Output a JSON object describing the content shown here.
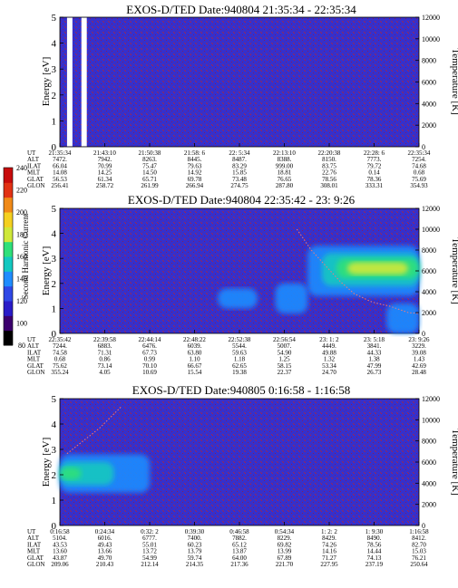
{
  "chart_data": {
    "type": "heatmap",
    "colorbar": {
      "label": "Second Harmonic Current",
      "ticks": [
        "80",
        "100",
        "120",
        "140",
        "160",
        "180",
        "200",
        "220",
        "240"
      ],
      "colors": [
        "#000000",
        "#3c006e",
        "#2a1cc8",
        "#2f48e6",
        "#1f8cff",
        "#13c8c0",
        "#2fe07a",
        "#cfe83a",
        "#f4d020",
        "#f08a18",
        "#e23214",
        "#c80c0c"
      ]
    },
    "panels": [
      {
        "title": "EXOS-D/TED   Date:940804  21:35:34 - 22:35:34",
        "ylabel": "Energy [eV]",
        "y2label": "Temperature [K]",
        "ylim": [
          0,
          5
        ],
        "y2lim": [
          0,
          12000
        ],
        "yticks": [
          "0",
          "1",
          "2",
          "3",
          "4",
          "5"
        ],
        "y2ticks": [
          "0",
          "2000",
          "4000",
          "6000",
          "8000",
          "10000",
          "12000"
        ],
        "gap_segments": [
          [
            0.02,
            0.035
          ],
          [
            0.06,
            0.075
          ]
        ],
        "spectrogram": [],
        "temperature_trace": [],
        "ephemeris": {
          "row_labels": [
            "UT",
            "ALT",
            "ILAT",
            "MLT",
            "GLAT",
            "GLON"
          ],
          "columns": [
            [
              "21:35:34",
              "7472.",
              "66.04",
              "14.08",
              "56.53",
              "256.41"
            ],
            [
              "21:43:10",
              "7942.",
              "70.99",
              "14.25",
              "61.34",
              "258.72"
            ],
            [
              "21:50:38",
              "8263.",
              "75.47",
              "14.50",
              "65.71",
              "261.99"
            ],
            [
              "21:58: 6",
              "8445.",
              "79.63",
              "14.92",
              "69.78",
              "266.94"
            ],
            [
              "22: 5:34",
              "8487.",
              "83.29",
              "15.85",
              "73.48",
              "274.75"
            ],
            [
              "22:13:10",
              "8388.",
              "999.00",
              "18.81",
              "76.65",
              "287.80"
            ],
            [
              "22:20:38",
              "8150.",
              "83.75",
              "22.76",
              "78.56",
              "308.01"
            ],
            [
              "22:28: 6",
              "7773.",
              "79.72",
              "0.14",
              "78.36",
              "333.31"
            ],
            [
              "22:35:34",
              "7254.",
              "74.68",
              "0.68",
              "75.69",
              "354.93"
            ]
          ]
        }
      },
      {
        "title": "EXOS-D/TED   Date:940804  22:35:42 - 23: 9:26",
        "ylabel": "Energy [eV]",
        "y2label": "Temperature [K]",
        "ylim": [
          0,
          5
        ],
        "y2lim": [
          0,
          12000
        ],
        "yticks": [
          "0",
          "1",
          "2",
          "3",
          "4",
          "5"
        ],
        "y2ticks": [
          "0",
          "2000",
          "4000",
          "6000",
          "8000",
          "10000",
          "12000"
        ],
        "gap_segments": [],
        "spectrogram": [
          {
            "x": [
              0.69,
              1.0
            ],
            "y": [
              1.5,
              3.5
            ],
            "level": 3
          },
          {
            "x": [
              0.73,
              1.0
            ],
            "y": [
              1.9,
              3.2
            ],
            "level": 4
          },
          {
            "x": [
              0.77,
              1.0
            ],
            "y": [
              2.2,
              3.0
            ],
            "level": 5
          },
          {
            "x": [
              0.8,
              0.97
            ],
            "y": [
              2.35,
              2.85
            ],
            "level": 6
          },
          {
            "x": [
              0.6,
              0.69
            ],
            "y": [
              0.8,
              2.0
            ],
            "level": 3
          },
          {
            "x": [
              0.44,
              0.55
            ],
            "y": [
              1.0,
              1.8
            ],
            "level": 3
          },
          {
            "x": [
              0.91,
              1.0
            ],
            "y": [
              0.0,
              1.2
            ],
            "level": 3
          }
        ],
        "temperature_trace": [
          [
            0.66,
            10000
          ],
          [
            0.7,
            8000
          ],
          [
            0.74,
            6500
          ],
          [
            0.78,
            5000
          ],
          [
            0.82,
            3800
          ],
          [
            0.87,
            3000
          ],
          [
            0.92,
            2600
          ],
          [
            0.97,
            2000
          ],
          [
            1.0,
            1900
          ]
        ],
        "ephemeris": {
          "row_labels": [
            "UT",
            "ALT",
            "ILAT",
            "MLT",
            "GLAT",
            "GLON"
          ],
          "columns": [
            [
              "22:35:42",
              "7244.",
              "74.58",
              "0.68",
              "75.62",
              "355.24"
            ],
            [
              "22:39:58",
              "6883.",
              "71.31",
              "0.86",
              "73.14",
              "4.05"
            ],
            [
              "22:44:14",
              "6476.",
              "67.73",
              "0.99",
              "70.10",
              "10.69"
            ],
            [
              "22:48:22",
              "6039.",
              "63.80",
              "1.10",
              "66.67",
              "15.54"
            ],
            [
              "22:52:38",
              "5544.",
              "59.63",
              "1.18",
              "62.65",
              "19.38"
            ],
            [
              "22:56:54",
              "5007.",
              "54.90",
              "1.25",
              "58.15",
              "22.37"
            ],
            [
              "23: 1: 2",
              "4449.",
              "49.88",
              "1.32",
              "53.34",
              "24.70"
            ],
            [
              "23: 5:18",
              "3841.",
              "44.33",
              "1.38",
              "47.99",
              "26.73"
            ],
            [
              "23: 9:26",
              "3229.",
              "39.08",
              "1.43",
              "42.69",
              "28.48"
            ]
          ]
        }
      },
      {
        "title": "EXOS-D/TED   Date:940805  0:16:58 - 1:16:58",
        "ylabel": "Energy [eV]",
        "y2label": "Temperature [K]",
        "ylim": [
          0,
          5
        ],
        "y2lim": [
          0,
          12000
        ],
        "yticks": [
          "0",
          "1",
          "2",
          "3",
          "4",
          "5"
        ],
        "y2ticks": [
          "0",
          "2000",
          "4000",
          "6000",
          "8000",
          "10000",
          "12000"
        ],
        "gap_segments": [],
        "spectrogram": [
          {
            "x": [
              0.0,
              0.25
            ],
            "y": [
              1.3,
              2.8
            ],
            "level": 3
          },
          {
            "x": [
              0.0,
              0.15
            ],
            "y": [
              1.6,
              2.5
            ],
            "level": 4
          },
          {
            "x": [
              0.0,
              0.06
            ],
            "y": [
              1.8,
              2.3
            ],
            "level": 5
          }
        ],
        "temperature_trace": [
          [
            0.02,
            6800
          ],
          [
            0.05,
            7600
          ],
          [
            0.08,
            8400
          ],
          [
            0.11,
            9200
          ],
          [
            0.14,
            10200
          ],
          [
            0.17,
            11200
          ]
        ],
        "ephemeris": {
          "row_labels": [
            "UT",
            "ALT",
            "ILAT",
            "MLT",
            "GLAT",
            "GLON"
          ],
          "columns": [
            [
              "0:16:58",
              "5104.",
              "43.53",
              "13.60",
              "43.87",
              "209.06"
            ],
            [
              "0:24:34",
              "6016.",
              "49.43",
              "13.66",
              "49.70",
              "210.43"
            ],
            [
              "0:32: 2",
              "6777.",
              "55.01",
              "13.72",
              "54.99",
              "212.14"
            ],
            [
              "0:39:30",
              "7400.",
              "60.23",
              "13.79",
              "59.74",
              "214.35"
            ],
            [
              "0:46:58",
              "7882.",
              "65.12",
              "13.87",
              "64.00",
              "217.36"
            ],
            [
              "0:54:34",
              "8229.",
              "69.82",
              "13.99",
              "67.89",
              "221.70"
            ],
            [
              "1: 2: 2",
              "8429.",
              "74.26",
              "14.16",
              "71.27",
              "227.95"
            ],
            [
              "1: 9:30",
              "8490.",
              "78.56",
              "14.44",
              "74.13",
              "237.19"
            ],
            [
              "1:16:58",
              "8412.",
              "82.70",
              "15.03",
              "76.21",
              "250.64"
            ]
          ]
        }
      }
    ]
  }
}
